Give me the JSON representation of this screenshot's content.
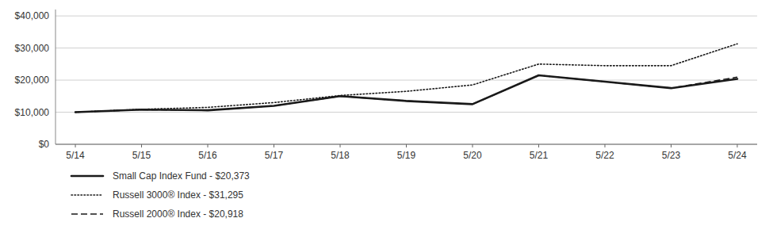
{
  "chart_data": {
    "type": "line",
    "categories": [
      "5/14",
      "5/15",
      "5/16",
      "5/17",
      "5/18",
      "5/19",
      "5/20",
      "5/21",
      "5/22",
      "5/23",
      "5/24"
    ],
    "series": [
      {
        "name": "Small Cap Index Fund - $20,373",
        "color": "#1a1a1a",
        "line_style": "solid",
        "values": [
          10000,
          10800,
          10600,
          12000,
          15000,
          13500,
          12500,
          21500,
          19500,
          17500,
          20373
        ]
      },
      {
        "name": "Russell 3000® Index - $31,295",
        "color": "#1a1a1a",
        "line_style": "dotted",
        "values": [
          10000,
          10900,
          11500,
          13000,
          15200,
          16500,
          18500,
          25000,
          24500,
          24500,
          31295
        ]
      },
      {
        "name": "Russell 2000® Index - $20,918",
        "color": "#1a1a1a",
        "line_style": "dashed",
        "values": [
          10000,
          10800,
          10600,
          12000,
          15000,
          13500,
          12500,
          21500,
          19500,
          17500,
          20918
        ]
      }
    ],
    "ylim": [
      0,
      42000
    ],
    "yticks": [
      {
        "value": 0,
        "label": "$0"
      },
      {
        "value": 10000,
        "label": "$10,000"
      },
      {
        "value": 20000,
        "label": "$20,000"
      },
      {
        "value": 30000,
        "label": "$30,000"
      },
      {
        "value": 40000,
        "label": "$40,000"
      }
    ],
    "grid": true,
    "legend": "bottom"
  }
}
